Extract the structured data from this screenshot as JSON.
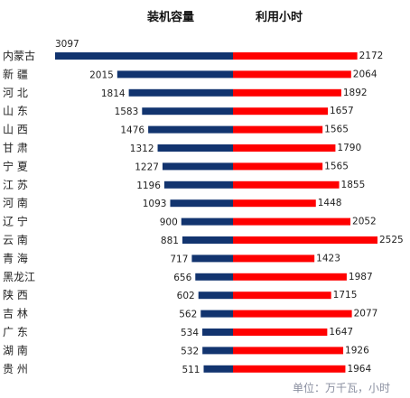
{
  "chart_data": {
    "type": "bar",
    "series": [
      {
        "name": "装机容量",
        "color": "#12346f",
        "values": [
          3097,
          2015,
          1814,
          1583,
          1476,
          1312,
          1227,
          1196,
          1093,
          900,
          881,
          717,
          656,
          602,
          562,
          534,
          532,
          511
        ]
      },
      {
        "name": "利用小时",
        "color": "#ff0000",
        "values": [
          2172,
          2064,
          1892,
          1657,
          1565,
          1790,
          1565,
          1855,
          1448,
          2052,
          2525,
          1423,
          1987,
          1715,
          2077,
          1647,
          1926,
          1964
        ]
      }
    ],
    "categories": [
      "内蒙古",
      "新 疆",
      "河 北",
      "山 东",
      "山 西",
      "甘 肃",
      "宁 夏",
      "江 苏",
      "河 南",
      "辽 宁",
      "云 南",
      "青 海",
      "黑龙江",
      "陕 西",
      "吉 林",
      "广 东",
      "湖 南",
      "贵 州"
    ],
    "unit_note": "单位：万千瓦，小时",
    "grid": false,
    "legend": "top-center"
  }
}
